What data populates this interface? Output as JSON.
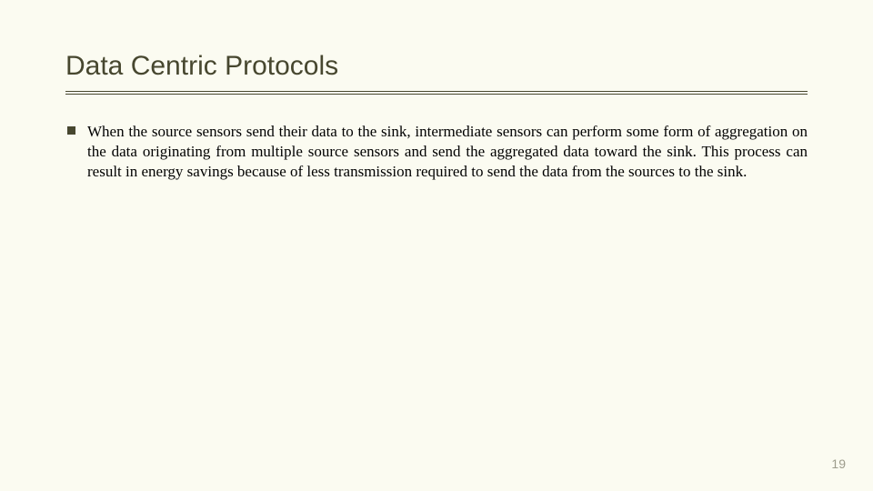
{
  "slide": {
    "title": "Data Centric Protocols",
    "body_text": "When the source sensors send their data to the sink, intermediate sensors can perform some form of aggregation on the data originating from multiple source sensors and send the aggregated data toward the sink. This process can result in energy savings because of less transmission required to send the data from the sources to the sink.",
    "page_number": "19"
  },
  "style": {
    "background_color": "#fbfbf1",
    "title_color": "#47472f",
    "title_fontsize": 30,
    "title_font_family": "Century Gothic, sans-serif",
    "rule_style": "double",
    "rule_color": "#47472f",
    "bullet_color": "#47472f",
    "bullet_shape": "square",
    "body_fontsize": 17,
    "body_font_family": "Times New Roman, serif",
    "body_color": "#000000",
    "body_align": "justify",
    "page_number_color": "#9d9c8c",
    "page_number_fontsize": 14
  }
}
